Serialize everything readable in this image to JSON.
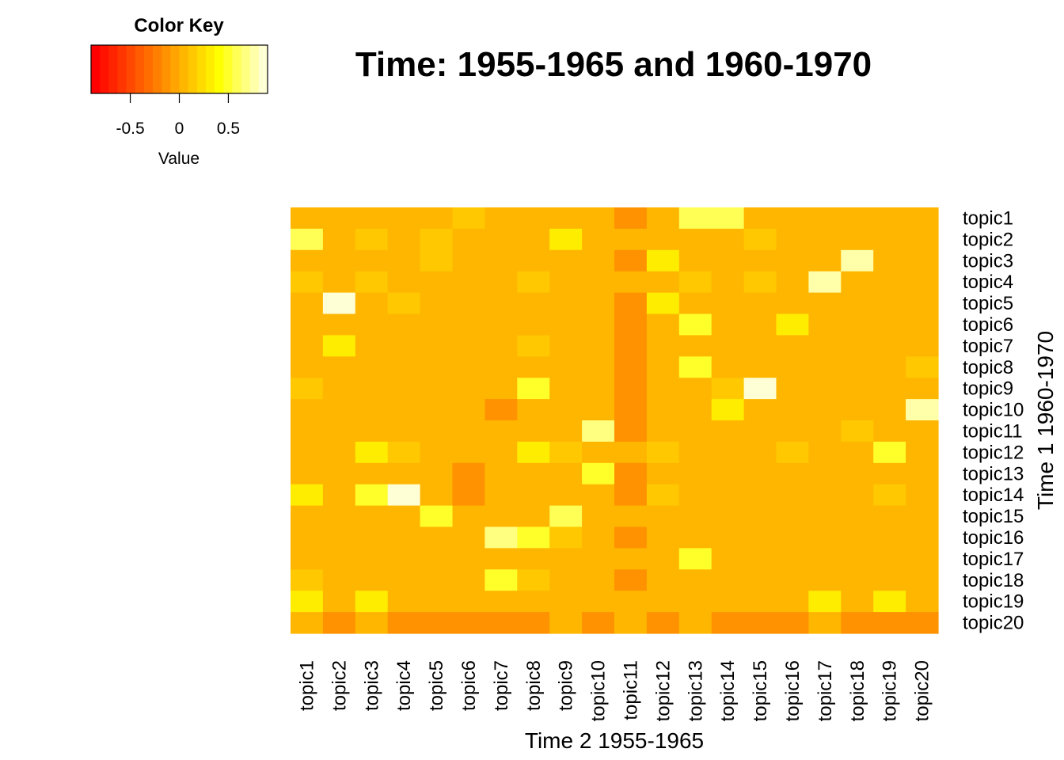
{
  "colors": {
    "palette": [
      "#FF0000",
      "#FF1200",
      "#FF2400",
      "#FF3600",
      "#FF4900",
      "#FF5B00",
      "#FF6D00",
      "#FF8000",
      "#FF9200",
      "#FFA400",
      "#FFB600",
      "#FFC800",
      "#FFDB00",
      "#FFED00",
      "#FFFF00",
      "#FFFF2A",
      "#FFFF55",
      "#FFFF80",
      "#FFFFAA",
      "#FFFFD5"
    ],
    "background": "#FFFFFF"
  },
  "chart_data": {
    "type": "heatmap",
    "title": "Time: 1955-1965 and 1960-1970",
    "xlabel": "Time 2 1955-1965",
    "ylabel": "Time 1 1960-1970",
    "x_categories": [
      "topic1",
      "topic2",
      "topic3",
      "topic4",
      "topic5",
      "topic6",
      "topic7",
      "topic8",
      "topic9",
      "topic10",
      "topic11",
      "topic12",
      "topic13",
      "topic14",
      "topic15",
      "topic16",
      "topic17",
      "topic18",
      "topic19",
      "topic20"
    ],
    "y_categories": [
      "topic1",
      "topic2",
      "topic3",
      "topic4",
      "topic5",
      "topic6",
      "topic7",
      "topic8",
      "topic9",
      "topic10",
      "topic11",
      "topic12",
      "topic13",
      "topic14",
      "topic15",
      "topic16",
      "topic17",
      "topic18",
      "topic19",
      "topic20"
    ],
    "value_range": [
      -0.9,
      0.9
    ],
    "values": [
      [
        0,
        0,
        0,
        0,
        0,
        0.15,
        0,
        0,
        0,
        0,
        -0.15,
        0,
        0.55,
        0.55,
        0,
        0,
        0,
        0,
        0,
        0
      ],
      [
        0.6,
        0,
        0.15,
        0,
        0.15,
        0,
        0,
        0,
        0.3,
        0,
        0,
        0,
        0,
        0,
        0.15,
        0,
        0,
        0,
        0,
        0
      ],
      [
        0,
        0,
        0,
        0,
        0.15,
        0,
        0,
        0,
        0,
        0,
        -0.15,
        0.3,
        0,
        0,
        0,
        0,
        0,
        0.75,
        0,
        0
      ],
      [
        0.15,
        0,
        0.15,
        0,
        0,
        0,
        0,
        0.15,
        0,
        0,
        0,
        0,
        0.15,
        0,
        0.15,
        0,
        0.75,
        0,
        0,
        0
      ],
      [
        0,
        0.9,
        0,
        0.15,
        0,
        0,
        0,
        0,
        0,
        0,
        -0.15,
        0.3,
        0,
        0,
        0,
        0,
        0,
        0,
        0,
        0
      ],
      [
        0,
        0,
        0,
        0,
        0,
        0,
        0,
        0,
        0,
        0,
        -0.15,
        0,
        0.5,
        0,
        0,
        0.3,
        0,
        0,
        0,
        0
      ],
      [
        0,
        0.3,
        0,
        0,
        0,
        0,
        0,
        0.15,
        0,
        0,
        -0.15,
        0,
        0,
        0,
        0,
        0,
        0,
        0,
        0,
        0
      ],
      [
        0,
        0,
        0,
        0,
        0,
        0,
        0,
        0,
        0,
        0,
        -0.15,
        0,
        0.45,
        0,
        0,
        0,
        0,
        0,
        0,
        0.1
      ],
      [
        0.15,
        0,
        0,
        0,
        0,
        0,
        0,
        0.5,
        0,
        0,
        -0.15,
        0,
        0,
        0.1,
        0.9,
        0,
        0,
        0,
        0,
        0
      ],
      [
        0,
        0,
        0,
        0,
        0,
        0,
        -0.15,
        0,
        0,
        0,
        -0.15,
        0,
        0,
        0.3,
        0,
        0,
        0,
        0,
        0,
        0.8
      ],
      [
        0,
        0,
        0,
        0,
        0,
        0,
        0,
        0,
        0,
        0.65,
        -0.15,
        0,
        0,
        0,
        0,
        0,
        0,
        0.1,
        0,
        0
      ],
      [
        0,
        0,
        0.3,
        0.15,
        0,
        0,
        0,
        0.3,
        0.15,
        0,
        0,
        0.15,
        0,
        0,
        0,
        0.15,
        0,
        0,
        0.5,
        0
      ],
      [
        0,
        0,
        0,
        0,
        0,
        -0.15,
        0,
        0,
        0,
        0.5,
        -0.15,
        0,
        0,
        0,
        0,
        0,
        0,
        0,
        0,
        0
      ],
      [
        0.3,
        0,
        0.5,
        0.9,
        0,
        -0.15,
        0,
        0,
        0,
        0,
        -0.15,
        0.15,
        0,
        0,
        0,
        0,
        0,
        0,
        0.15,
        0
      ],
      [
        0,
        0,
        0,
        0,
        0.5,
        0,
        0,
        0,
        0.55,
        0,
        0,
        0,
        0,
        0,
        0,
        0,
        0,
        0,
        0,
        0
      ],
      [
        0,
        0,
        0,
        0,
        0,
        0,
        0.7,
        0.5,
        0.15,
        0,
        -0.15,
        0,
        0,
        0,
        0,
        0,
        0,
        0,
        0,
        0
      ],
      [
        0,
        0,
        0,
        0,
        0,
        0,
        0,
        0,
        0,
        0,
        0,
        0,
        0.5,
        0,
        0,
        0,
        0,
        0,
        0,
        0
      ],
      [
        0.15,
        0,
        0,
        0,
        0,
        0,
        0.5,
        0.15,
        0,
        0,
        -0.15,
        0,
        0,
        0,
        0,
        0,
        0,
        0,
        0,
        0
      ],
      [
        0.35,
        0,
        0.3,
        0,
        0,
        0,
        0,
        0,
        0,
        0,
        0,
        0,
        0,
        0,
        0,
        0,
        0.3,
        0,
        0.3,
        0
      ],
      [
        0,
        -0.15,
        0,
        -0.15,
        -0.15,
        -0.15,
        -0.15,
        -0.15,
        0,
        -0.15,
        0,
        -0.15,
        0,
        -0.15,
        -0.15,
        -0.15,
        0,
        -0.15,
        -0.15,
        -0.15
      ]
    ],
    "color_key": {
      "title": "Color Key",
      "label": "Value",
      "ticks": [
        -0.5,
        0,
        0.5
      ],
      "tick_labels": [
        "-0.5",
        "0",
        "0.5"
      ],
      "range": [
        -0.9,
        0.9
      ]
    }
  }
}
